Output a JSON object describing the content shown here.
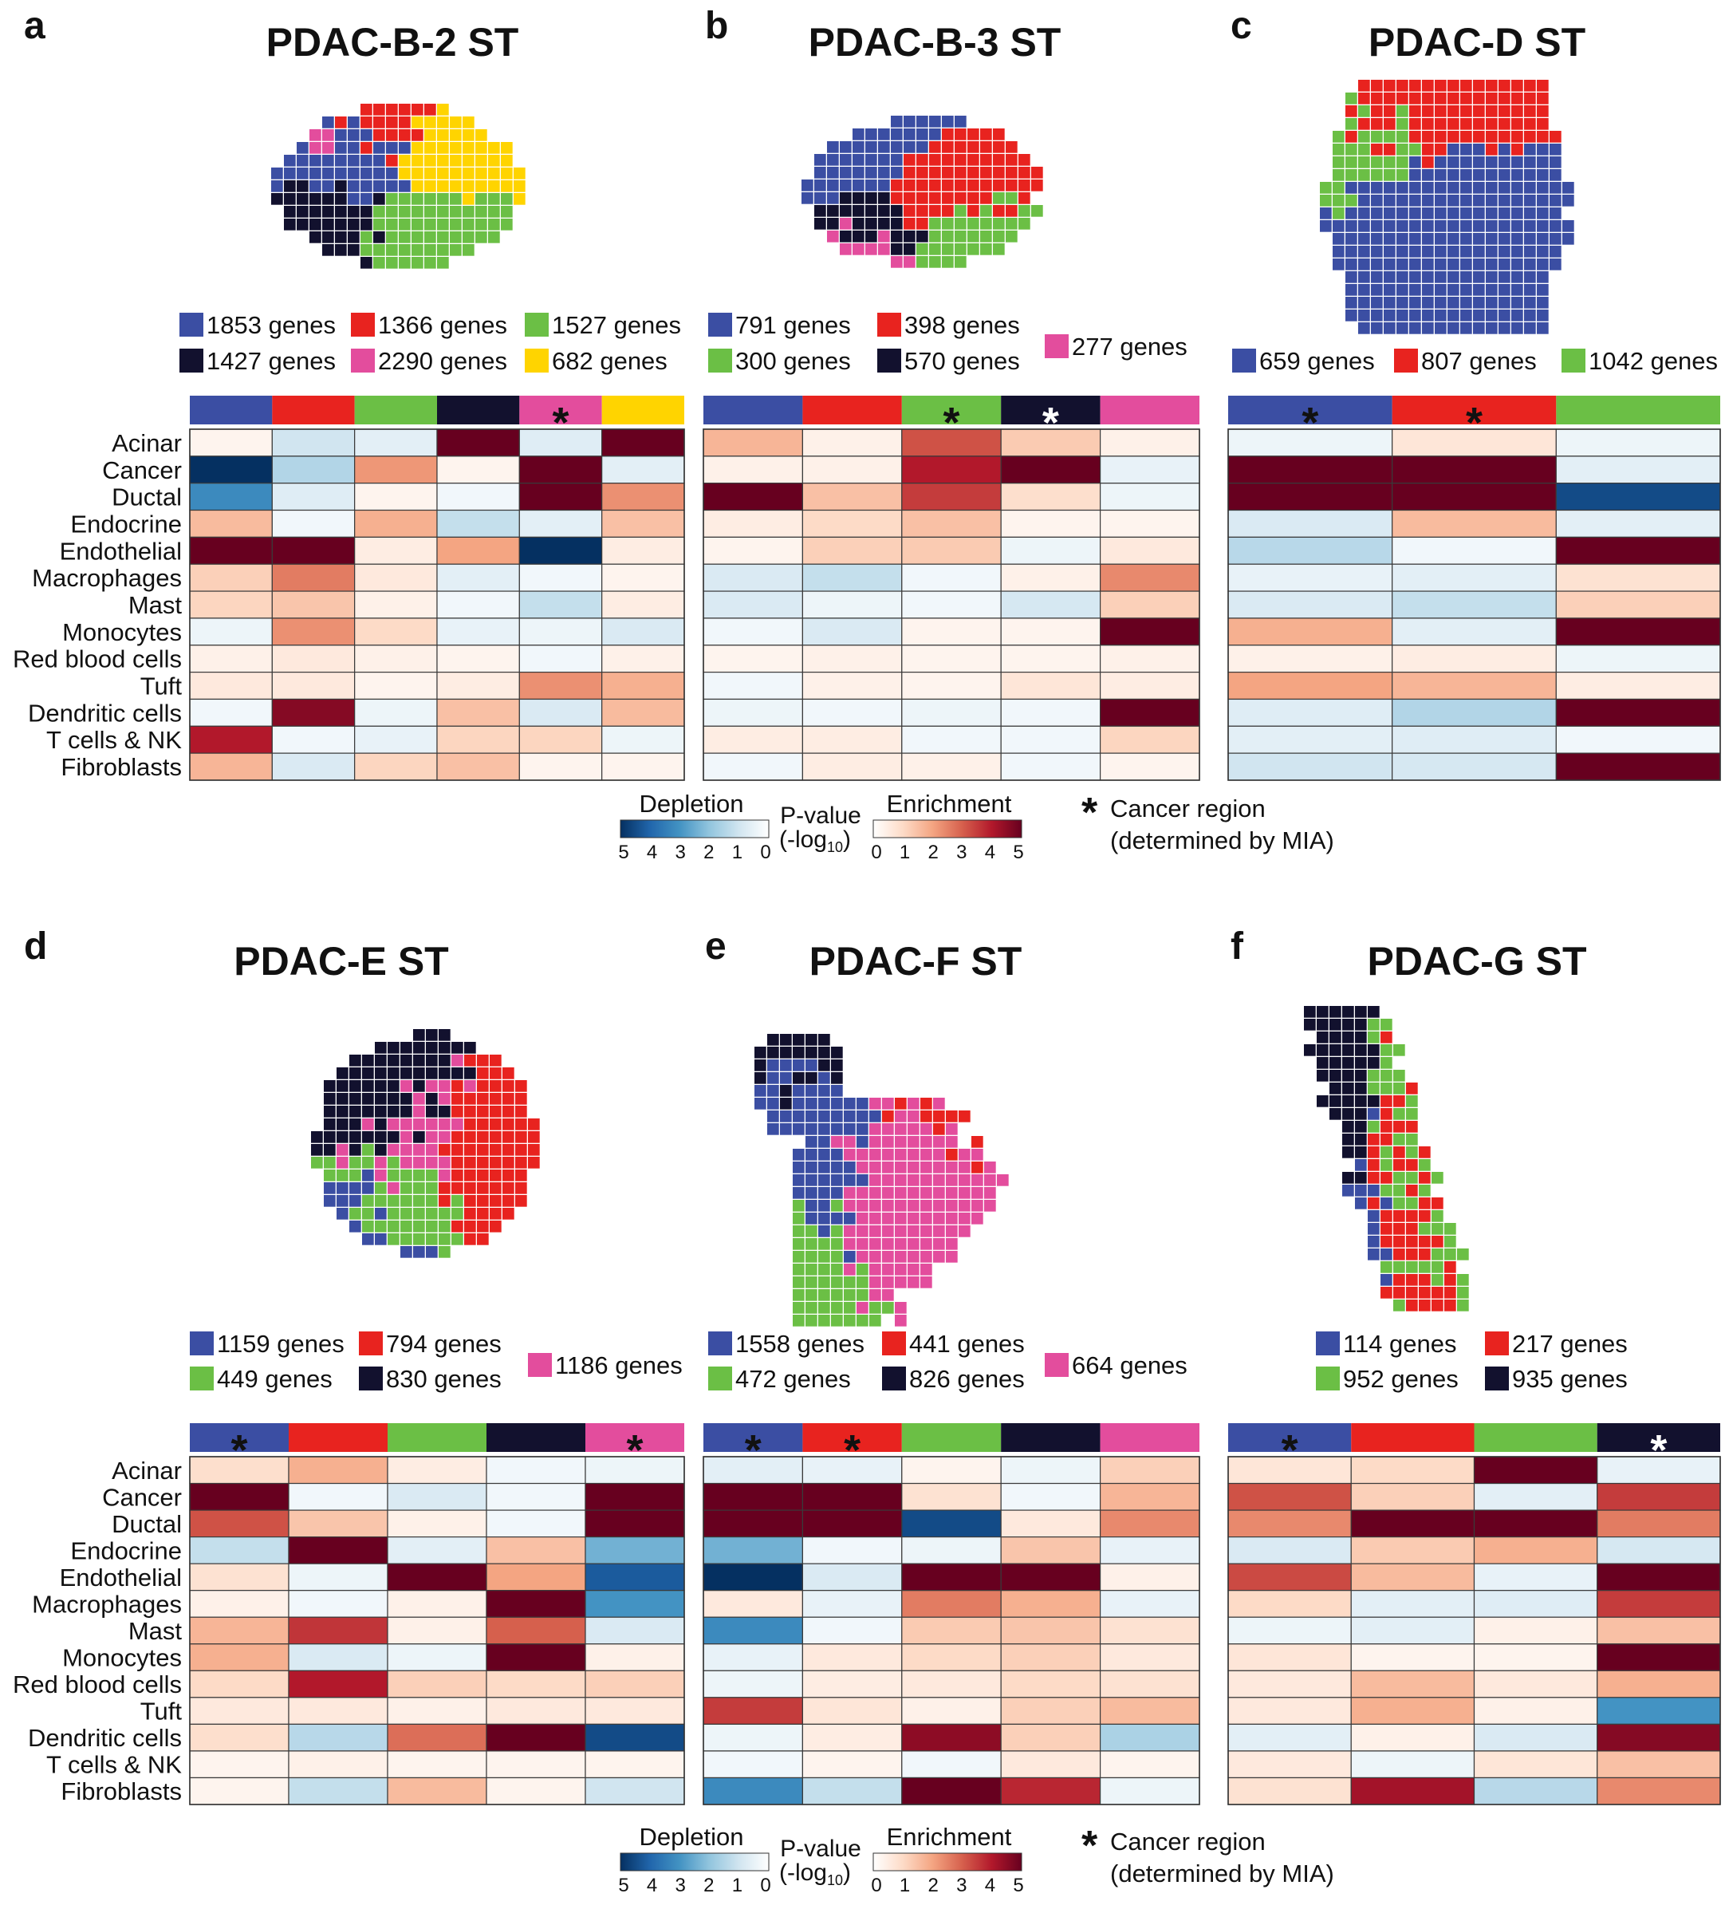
{
  "figure": {
    "row_labels": [
      "Acinar",
      "Cancer",
      "Ductal",
      "Endocrine",
      "Endothelial",
      "Macrophages",
      "Mast",
      "Monocytes",
      "Red blood cells",
      "Tuft",
      "Dendritic cells",
      "T cells & NK",
      "Fibroblasts"
    ],
    "legend": {
      "depletion_label": "Depletion",
      "enrichment_label": "Enrichment",
      "pvalue_label": "P-value",
      "log_label": "(-log",
      "log_sub": "10",
      "log_close": ")",
      "depletion_ticks": [
        "5",
        "4",
        "3",
        "2",
        "1",
        "0"
      ],
      "enrichment_ticks": [
        "0",
        "1",
        "2",
        "3",
        "4",
        "5"
      ],
      "cancer_star": "*",
      "cancer_line1": "Cancer region",
      "cancer_line2": "(determined by MIA)"
    }
  },
  "colors": {
    "blue": "#3b4ea3",
    "red": "#e8231f",
    "green": "#6bbf45",
    "navy": "#12112e",
    "pink": "#e34d9d",
    "yellow": "#ffd400"
  },
  "chart_data": [
    {
      "panel": "a",
      "type": "heatmap",
      "title": "PDAC-B-2 ST",
      "value_scale": "signed -log10 P-value (negative = depletion, positive = enrichment), range -5 to 5",
      "regions": [
        {
          "color": "blue",
          "label": "1853 genes",
          "cancer": false
        },
        {
          "color": "red",
          "label": "1366 genes",
          "cancer": false
        },
        {
          "color": "green",
          "label": "1527 genes",
          "cancer": false
        },
        {
          "color": "navy",
          "label": "1427 genes",
          "cancer": false
        },
        {
          "color": "pink",
          "label": "2290 genes",
          "cancer": true
        },
        {
          "color": "yellow",
          "label": "682 genes",
          "cancer": false
        }
      ],
      "values": [
        [
          0.3,
          -1.0,
          -0.6,
          5,
          -0.7,
          5
        ],
        [
          -5,
          -1.5,
          2.2,
          0.3,
          5,
          -0.6
        ],
        [
          -3.2,
          -0.7,
          0.3,
          -0.3,
          5,
          2.3
        ],
        [
          1.6,
          -0.3,
          1.8,
          -1.2,
          -0.6,
          1.5
        ],
        [
          5,
          5,
          0.5,
          2.0,
          -5,
          0.5
        ],
        [
          1.2,
          2.6,
          0.6,
          -0.6,
          -0.3,
          0.3
        ],
        [
          1.1,
          1.4,
          0.4,
          -0.3,
          -1.2,
          0.5
        ],
        [
          -0.4,
          2.3,
          1.0,
          -0.5,
          -0.4,
          -0.8
        ],
        [
          0.4,
          0.6,
          0.4,
          0.3,
          -0.3,
          0.4
        ],
        [
          0.6,
          0.6,
          0.3,
          0.5,
          2.3,
          1.8
        ],
        [
          -0.3,
          4.6,
          -0.4,
          1.5,
          -0.8,
          1.6
        ],
        [
          4.0,
          -0.3,
          -0.5,
          1.1,
          1.1,
          -0.4
        ],
        [
          1.7,
          -0.8,
          1.1,
          1.5,
          0.3,
          0.3
        ]
      ]
    },
    {
      "panel": "b",
      "type": "heatmap",
      "title": "PDAC-B-3 ST",
      "value_scale": "signed -log10 P-value (negative = depletion, positive = enrichment), range -5 to 5",
      "regions": [
        {
          "color": "blue",
          "label": "791 genes",
          "cancer": false
        },
        {
          "color": "red",
          "label": "398 genes",
          "cancer": false
        },
        {
          "color": "green",
          "label": "300 genes",
          "cancer": true
        },
        {
          "color": "navy",
          "label": "570 genes",
          "cancer": true
        },
        {
          "color": "pink",
          "label": "277 genes",
          "cancer": false
        }
      ],
      "values": [
        [
          1.7,
          0.4,
          3.2,
          1.3,
          0.4
        ],
        [
          0.4,
          0.4,
          4.0,
          5,
          -0.5
        ],
        [
          5,
          1.5,
          3.5,
          0.9,
          -0.4
        ],
        [
          0.5,
          1.0,
          1.5,
          0.3,
          0.3
        ],
        [
          0.3,
          1.2,
          1.3,
          -0.4,
          0.6
        ],
        [
          -0.8,
          -1.2,
          -0.3,
          0.4,
          2.4
        ],
        [
          -0.8,
          -0.4,
          -0.3,
          -0.9,
          1.2
        ],
        [
          -0.3,
          -0.8,
          0.3,
          0.3,
          5
        ],
        [
          0.3,
          0.4,
          0.3,
          0.3,
          0.4
        ],
        [
          -0.3,
          0.4,
          0.3,
          0.7,
          0.5
        ],
        [
          -0.4,
          -0.3,
          -0.4,
          -0.3,
          5
        ],
        [
          0.5,
          0.5,
          -0.3,
          -0.3,
          1.1
        ],
        [
          -0.3,
          0.5,
          0.4,
          -0.3,
          0.3
        ]
      ]
    },
    {
      "panel": "c",
      "type": "heatmap",
      "title": "PDAC-D ST",
      "value_scale": "signed -log10 P-value (negative = depletion, positive = enrichment), range -5 to 5",
      "regions": [
        {
          "color": "blue",
          "label": "659 genes",
          "cancer": true
        },
        {
          "color": "red",
          "label": "807 genes",
          "cancer": true
        },
        {
          "color": "green",
          "label": "1042 genes",
          "cancer": false
        }
      ],
      "values": [
        [
          -0.4,
          0.7,
          -0.4
        ],
        [
          5,
          5,
          -0.6
        ],
        [
          5,
          5,
          -4.5
        ],
        [
          -0.8,
          1.6,
          -0.6
        ],
        [
          -1.4,
          -0.3,
          5
        ],
        [
          -0.5,
          -0.6,
          0.8
        ],
        [
          -0.8,
          -1.2,
          1.2
        ],
        [
          1.8,
          -0.6,
          5
        ],
        [
          0.4,
          0.5,
          -0.4
        ],
        [
          2.0,
          1.7,
          0.5
        ],
        [
          -0.7,
          -1.5,
          5
        ],
        [
          -0.6,
          -0.7,
          -0.3
        ],
        [
          -1.0,
          -0.9,
          5
        ]
      ]
    },
    {
      "panel": "d",
      "type": "heatmap",
      "title": "PDAC-E ST",
      "value_scale": "signed -log10 P-value (negative = depletion, positive = enrichment), range -5 to 5",
      "regions": [
        {
          "color": "blue",
          "label": "1159 genes",
          "cancer": true
        },
        {
          "color": "red",
          "label": "794 genes",
          "cancer": false
        },
        {
          "color": "green",
          "label": "449 genes",
          "cancer": false
        },
        {
          "color": "navy",
          "label": "830 genes",
          "cancer": false
        },
        {
          "color": "pink",
          "label": "1186 genes",
          "cancer": true
        }
      ],
      "values": [
        [
          0.9,
          1.8,
          0.5,
          -0.3,
          -0.4
        ],
        [
          5,
          -0.3,
          -0.8,
          -0.3,
          5
        ],
        [
          3.2,
          1.4,
          0.4,
          -0.3,
          5
        ],
        [
          -1.2,
          5,
          -0.6,
          1.5,
          -2.4
        ],
        [
          0.8,
          -0.4,
          5,
          2.0,
          -4.2
        ],
        [
          0.4,
          -0.3,
          0.4,
          5,
          -3.0
        ],
        [
          1.7,
          3.6,
          0.4,
          3.0,
          -0.8
        ],
        [
          1.8,
          -0.8,
          -0.4,
          5,
          0.4
        ],
        [
          1.0,
          4.0,
          1.2,
          1.0,
          1.2
        ],
        [
          0.6,
          0.6,
          0.4,
          0.6,
          0.6
        ],
        [
          0.9,
          -1.4,
          2.8,
          5,
          -4.5
        ],
        [
          0.3,
          0.4,
          0.3,
          0.3,
          0.3
        ],
        [
          0.3,
          -1.2,
          1.6,
          0.3,
          -1.0
        ]
      ]
    },
    {
      "panel": "e",
      "type": "heatmap",
      "title": "PDAC-F ST",
      "value_scale": "signed -log10 P-value (negative = depletion, positive = enrichment), range -5 to 5",
      "regions": [
        {
          "color": "blue",
          "label": "1558 genes",
          "cancer": true
        },
        {
          "color": "red",
          "label": "441 genes",
          "cancer": true
        },
        {
          "color": "green",
          "label": "472 genes",
          "cancer": false
        },
        {
          "color": "navy",
          "label": "826 genes",
          "cancer": false
        },
        {
          "color": "pink",
          "label": "664 genes",
          "cancer": false
        }
      ],
      "values": [
        [
          -0.6,
          -0.5,
          0.3,
          -0.4,
          1.2
        ],
        [
          5,
          5,
          0.8,
          -0.3,
          1.7
        ],
        [
          5,
          5,
          -4.5,
          0.6,
          2.4
        ],
        [
          -2.4,
          -0.3,
          -0.4,
          1.4,
          -0.5
        ],
        [
          -5,
          -0.8,
          5,
          5,
          0.4
        ],
        [
          0.6,
          -0.5,
          2.6,
          1.8,
          -0.5
        ],
        [
          -3.2,
          -0.3,
          1.3,
          1.4,
          0.8
        ],
        [
          -0.5,
          0.6,
          1.0,
          1.2,
          0.6
        ],
        [
          -0.4,
          0.5,
          0.6,
          1.0,
          0.8
        ],
        [
          3.5,
          0.7,
          0.4,
          1.2,
          1.6
        ],
        [
          -0.4,
          0.5,
          4.5,
          1.2,
          -1.6
        ],
        [
          -0.3,
          0.3,
          -0.3,
          0.6,
          0.3
        ],
        [
          -3.2,
          -1.2,
          5,
          3.8,
          -0.4
        ]
      ]
    },
    {
      "panel": "f",
      "type": "heatmap",
      "title": "PDAC-G ST",
      "value_scale": "signed -log10 P-value (negative = depletion, positive = enrichment), range -5 to 5",
      "regions": [
        {
          "color": "blue",
          "label": "114 genes",
          "cancer": true
        },
        {
          "color": "red",
          "label": "217 genes",
          "cancer": false
        },
        {
          "color": "green",
          "label": "952 genes",
          "cancer": false
        },
        {
          "color": "navy",
          "label": "935 genes",
          "cancer": true
        }
      ],
      "values": [
        [
          0.7,
          1.0,
          5,
          -0.5
        ],
        [
          3.2,
          1.2,
          -0.6,
          3.5
        ],
        [
          2.4,
          5,
          5,
          2.6
        ],
        [
          -0.8,
          1.3,
          1.8,
          -0.9
        ],
        [
          3.3,
          1.6,
          -0.5,
          5
        ],
        [
          1.0,
          -0.6,
          -0.7,
          3.5
        ],
        [
          -0.4,
          -0.6,
          0.4,
          1.5
        ],
        [
          0.7,
          0.3,
          0.3,
          5
        ],
        [
          0.6,
          1.6,
          0.6,
          1.8
        ],
        [
          0.6,
          1.8,
          0.4,
          -3.0
        ],
        [
          -0.6,
          0.4,
          -0.8,
          4.6
        ],
        [
          0.6,
          -0.4,
          0.7,
          1.5
        ],
        [
          0.8,
          4.2,
          -1.4,
          2.4
        ]
      ]
    }
  ]
}
